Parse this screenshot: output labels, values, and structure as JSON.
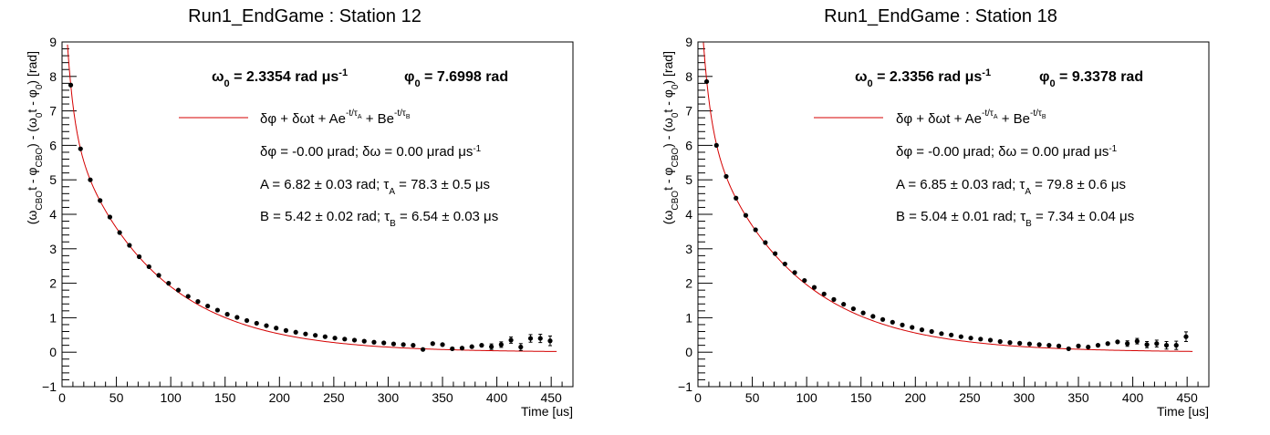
{
  "chart_data": [
    {
      "type": "scatter",
      "title": "Run1_EndGame : Station 12",
      "xlabel": "Time [us]",
      "ylabel_parts": [
        "(ω",
        "CBO",
        "t - φ",
        "CBO",
        ") - (ω",
        "0",
        "t - φ",
        "0",
        ") [rad]"
      ],
      "xlim": [
        0,
        470
      ],
      "ylim": [
        -1,
        9
      ],
      "xticks": [
        0,
        50,
        100,
        150,
        200,
        250,
        300,
        350,
        400,
        450
      ],
      "yticks": [
        -1,
        0,
        1,
        2,
        3,
        4,
        5,
        6,
        7,
        8,
        9
      ],
      "grid": false,
      "fit_params": {
        "dphi": 0.0,
        "domega": 0.0,
        "A": 6.82,
        "tauA": 78.3,
        "B": 5.42,
        "tauB": 6.54
      },
      "annotations": {
        "omega0": "2.3354 rad",
        "phi0": "7.6998 rad",
        "dphi_line": "δφ = -0.00 μrad; δω = 0.00 μrad μs",
        "A_pre": "A = 6.82 ± 0.03 rad; τ",
        "A_post": " = 78.3 ± 0.5 μs",
        "B_pre": "B = 5.42 ± 0.02 rad; τ",
        "B_post": " = 6.54 ± 0.03 μs"
      },
      "x": [
        8,
        17,
        26,
        35,
        44,
        53,
        62,
        71,
        80,
        89,
        98,
        107,
        116,
        125,
        134,
        143,
        152,
        161,
        170,
        179,
        188,
        197,
        206,
        215,
        224,
        233,
        242,
        251,
        260,
        269,
        278,
        287,
        296,
        305,
        314,
        323,
        332,
        341,
        350,
        359,
        368,
        377,
        386,
        395,
        404,
        413,
        422,
        431,
        440,
        449
      ],
      "y": [
        7.75,
        5.9,
        5.0,
        4.4,
        3.92,
        3.47,
        3.1,
        2.77,
        2.48,
        2.23,
        2.0,
        1.8,
        1.62,
        1.47,
        1.34,
        1.22,
        1.1,
        1.01,
        0.92,
        0.84,
        0.77,
        0.7,
        0.63,
        0.58,
        0.53,
        0.49,
        0.45,
        0.41,
        0.38,
        0.35,
        0.32,
        0.29,
        0.27,
        0.24,
        0.22,
        0.2,
        0.08,
        0.25,
        0.22,
        0.1,
        0.12,
        0.16,
        0.2,
        0.16,
        0.22,
        0.35,
        0.15,
        0.4,
        0.4,
        0.33
      ],
      "yerr": [
        0.05,
        0.03,
        0.03,
        0.03,
        0.03,
        0.03,
        0.03,
        0.03,
        0.03,
        0.03,
        0.03,
        0.03,
        0.03,
        0.03,
        0.03,
        0.03,
        0.03,
        0.03,
        0.03,
        0.03,
        0.03,
        0.03,
        0.03,
        0.03,
        0.03,
        0.03,
        0.03,
        0.03,
        0.03,
        0.03,
        0.03,
        0.03,
        0.03,
        0.04,
        0.04,
        0.04,
        0.05,
        0.05,
        0.05,
        0.06,
        0.06,
        0.07,
        0.07,
        0.08,
        0.08,
        0.09,
        0.1,
        0.11,
        0.12,
        0.14
      ]
    },
    {
      "type": "scatter",
      "title": "Run1_EndGame : Station 18",
      "xlabel": "Time [us]",
      "ylabel_parts": [
        "(ω",
        "CBO",
        "t - φ",
        "CBO",
        ") - (ω",
        "0",
        "t - φ",
        "0",
        ") [rad]"
      ],
      "xlim": [
        0,
        470
      ],
      "ylim": [
        -1,
        9
      ],
      "xticks": [
        0,
        50,
        100,
        150,
        200,
        250,
        300,
        350,
        400,
        450
      ],
      "yticks": [
        -1,
        0,
        1,
        2,
        3,
        4,
        5,
        6,
        7,
        8,
        9
      ],
      "grid": false,
      "fit_params": {
        "dphi": 0.0,
        "domega": 0.0,
        "A": 6.85,
        "tauA": 79.8,
        "B": 5.04,
        "tauB": 7.34
      },
      "annotations": {
        "omega0": "2.3356 rad",
        "phi0": "9.3378 rad",
        "dphi_line": "δφ = -0.00 μrad; δω = 0.00 μrad μs",
        "A_pre": "A = 6.85 ± 0.03 rad; τ",
        "A_post": " = 79.8 ± 0.6 μs",
        "B_pre": "B = 5.04 ± 0.01 rad; τ",
        "B_post": " = 7.34 ± 0.04 μs"
      },
      "x": [
        8,
        17,
        26,
        35,
        44,
        53,
        62,
        71,
        80,
        89,
        98,
        107,
        116,
        125,
        134,
        143,
        152,
        161,
        170,
        179,
        188,
        197,
        206,
        215,
        224,
        233,
        242,
        251,
        260,
        269,
        278,
        287,
        296,
        305,
        314,
        323,
        332,
        341,
        350,
        359,
        368,
        377,
        386,
        395,
        404,
        413,
        422,
        431,
        440,
        449
      ],
      "y": [
        7.85,
        6.0,
        5.1,
        4.47,
        3.97,
        3.55,
        3.18,
        2.86,
        2.56,
        2.31,
        2.08,
        1.88,
        1.69,
        1.53,
        1.39,
        1.26,
        1.14,
        1.04,
        0.95,
        0.87,
        0.79,
        0.72,
        0.65,
        0.6,
        0.54,
        0.5,
        0.45,
        0.41,
        0.38,
        0.35,
        0.31,
        0.28,
        0.26,
        0.24,
        0.22,
        0.2,
        0.18,
        0.1,
        0.18,
        0.15,
        0.2,
        0.25,
        0.3,
        0.25,
        0.32,
        0.22,
        0.25,
        0.2,
        0.2,
        0.45
      ],
      "yerr": [
        0.05,
        0.03,
        0.03,
        0.03,
        0.03,
        0.03,
        0.03,
        0.03,
        0.03,
        0.03,
        0.03,
        0.03,
        0.03,
        0.03,
        0.03,
        0.03,
        0.03,
        0.03,
        0.03,
        0.03,
        0.03,
        0.03,
        0.03,
        0.03,
        0.03,
        0.03,
        0.03,
        0.03,
        0.03,
        0.03,
        0.03,
        0.03,
        0.03,
        0.04,
        0.04,
        0.04,
        0.05,
        0.05,
        0.05,
        0.06,
        0.06,
        0.07,
        0.07,
        0.08,
        0.08,
        0.09,
        0.1,
        0.11,
        0.12,
        0.14
      ]
    }
  ],
  "colors": {
    "fit_line": "#d40000",
    "marker": "#000000",
    "frame": "#000000"
  }
}
